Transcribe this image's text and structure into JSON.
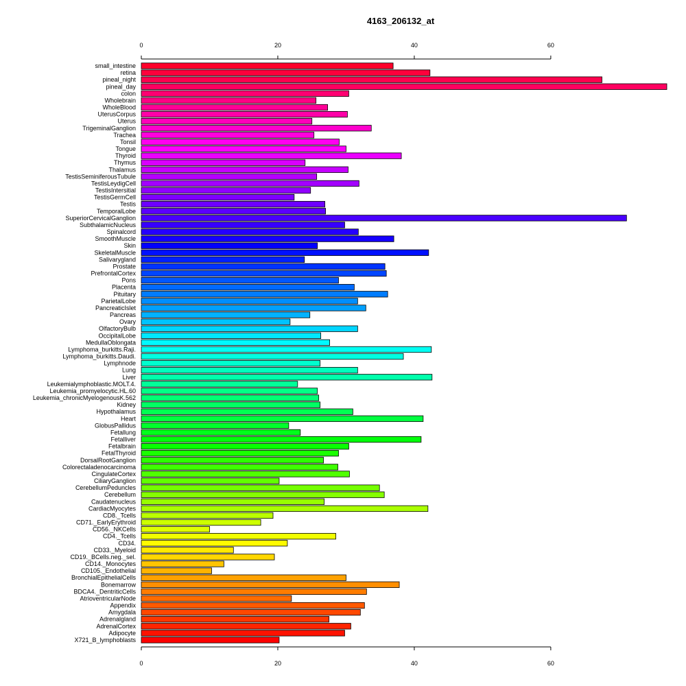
{
  "chart_data": {
    "type": "bar",
    "orientation": "horizontal",
    "title": "4163_206132_at",
    "xlabel": "",
    "ylabel": "",
    "xlim": [
      0,
      77
    ],
    "x_ticks": [
      0,
      20,
      40,
      60
    ],
    "x_tick_labels": [
      "0",
      "20",
      "40",
      "60"
    ],
    "x_axis_position": "top and bottom",
    "grid": false,
    "legend": "none",
    "color_scheme": "rainbow, red at top through violet, blue, cyan, green, yellow, orange back to red at bottom",
    "categories": [
      "small_intestine",
      "retina",
      "pineal_night",
      "pineal_day",
      "colon",
      "Wholebrain",
      "WholeBlood",
      "UterusCorpus",
      "Uterus",
      "TrigeminalGanglion",
      "Trachea",
      "Tonsil",
      "Tongue",
      "Thyroid",
      "Thymus",
      "Thalamus",
      "TestisSeminiferousTubule",
      "TestisLeydigCell",
      "TestisIntersitial",
      "TestisGermCell",
      "Testis",
      "TemporalLobe",
      "SuperiorCervicalGanglion",
      "SubthalamicNucleus",
      "Spinalcord",
      "SmoothMuscle",
      "Skin",
      "SkeletalMuscle",
      "Salivarygland",
      "Prostate",
      "PrefrontalCortex",
      "Pons",
      "Placenta",
      "Pituitary",
      "ParietalLobe",
      "PancreaticIslet",
      "Pancreas",
      "Ovary",
      "OlfactoryBulb",
      "OccipitalLobe",
      "MedullaOblongata",
      "Lymphoma_burkitts.Raji.",
      "Lymphoma_burkitts.Daudi.",
      "Lymphnode",
      "Lung",
      "Liver",
      "Leukemialymphoblastic.MOLT.4.",
      "Leukemia_promyelocytic.HL.60",
      "Leukemia_chronicMyelogenousK.562",
      "Kidney",
      "Hypothalamus",
      "Heart",
      "GlobusPallidus",
      "Fetallung",
      "Fetalliver",
      "Fetalbrain",
      "FetalThyroid",
      "DorsalRootGanglion",
      "Colorectaladenocarcinoma",
      "CingulateCortex",
      "CiliaryGanglion",
      "CerebellumPeduncles",
      "Cerebellum",
      "Caudatenucleus",
      "CardiacMyocytes",
      "CD8._Tcells",
      "CD71._EarlyErythroid",
      "CD56._NKCells",
      "CD4._Tcells",
      "CD34.",
      "CD33._Myeloid",
      "CD19._BCells.neg._sel.",
      "CD14._Monocytes",
      "CD105._Endothelial",
      "BronchialEpithelialCells",
      "Bonemarrow",
      "BDCA4._DentriticCells",
      "AtrioventricularNode",
      "Appendix",
      "Amygdala",
      "Adrenalgland",
      "AdrenalCortex",
      "Adipocyte",
      "X721_B_lymphoblasts"
    ],
    "values": [
      36.9,
      42.3,
      67.5,
      77.0,
      30.4,
      25.6,
      27.3,
      30.2,
      25.0,
      33.7,
      25.3,
      29.0,
      30.0,
      38.1,
      24.0,
      30.3,
      25.7,
      31.9,
      24.8,
      22.4,
      26.9,
      27.0,
      71.1,
      29.8,
      31.8,
      37.0,
      25.8,
      42.1,
      23.9,
      35.7,
      35.9,
      28.9,
      31.2,
      36.1,
      31.7,
      32.9,
      24.7,
      21.8,
      31.7,
      26.3,
      27.6,
      42.5,
      38.4,
      26.2,
      31.7,
      42.6,
      22.9,
      25.8,
      26.0,
      26.2,
      31.0,
      41.3,
      21.6,
      23.3,
      41.0,
      30.4,
      28.9,
      26.7,
      28.8,
      30.5,
      20.2,
      34.9,
      35.6,
      26.8,
      42.0,
      19.3,
      17.5,
      10.0,
      28.5,
      21.4,
      13.5,
      19.5,
      12.1,
      10.3,
      30.0,
      37.8,
      33.0,
      22.0,
      32.7,
      32.1,
      27.5,
      30.7,
      29.8,
      20.2
    ]
  }
}
